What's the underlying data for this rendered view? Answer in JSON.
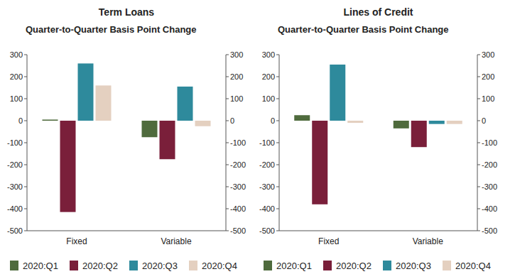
{
  "chart_data": [
    {
      "type": "bar",
      "title": "Term Loans",
      "subtitle": "Quarter-to-Quarter Basis Point Change",
      "categories": [
        "Fixed",
        "Variable"
      ],
      "series": [
        {
          "name": "2020:Q1",
          "color": "#4f6b3d",
          "values": [
            5,
            -75
          ]
        },
        {
          "name": "2020:Q2",
          "color": "#7a1f3a",
          "values": [
            -415,
            -175
          ]
        },
        {
          "name": "2020:Q3",
          "color": "#2e8a9c",
          "values": [
            260,
            155
          ]
        },
        {
          "name": "2020:Q4",
          "color": "#e4d0c0",
          "values": [
            160,
            -25
          ]
        }
      ],
      "ylim": [
        -500,
        300
      ],
      "yticks": [
        -500,
        -400,
        -300,
        -200,
        -100,
        0,
        100,
        200,
        300
      ],
      "y2lim": [
        -500,
        300
      ],
      "y2ticks": [
        -500,
        -400,
        -300,
        -200,
        -100,
        0,
        100,
        200,
        300
      ],
      "grid": false,
      "legend": "bottom"
    },
    {
      "type": "bar",
      "title": "Lines of Credit",
      "subtitle": "Quarter-to-Quarter Basis Point Change",
      "categories": [
        "Fixed",
        "Variable"
      ],
      "series": [
        {
          "name": "2020:Q1",
          "color": "#4f6b3d",
          "values": [
            25,
            -35
          ]
        },
        {
          "name": "2020:Q2",
          "color": "#7a1f3a",
          "values": [
            -380,
            -120
          ]
        },
        {
          "name": "2020:Q3",
          "color": "#2e8a9c",
          "values": [
            255,
            -15
          ]
        },
        {
          "name": "2020:Q4",
          "color": "#e4d0c0",
          "values": [
            -10,
            -15
          ]
        }
      ],
      "ylim": [
        -500,
        300
      ],
      "yticks": [
        -500,
        -400,
        -300,
        -200,
        -100,
        0,
        100,
        200,
        300
      ],
      "y2lim": [
        -500,
        300
      ],
      "y2ticks": [
        -500,
        -400,
        -300,
        -200,
        -100,
        0,
        100,
        200,
        300
      ],
      "grid": false,
      "legend": "bottom"
    }
  ]
}
